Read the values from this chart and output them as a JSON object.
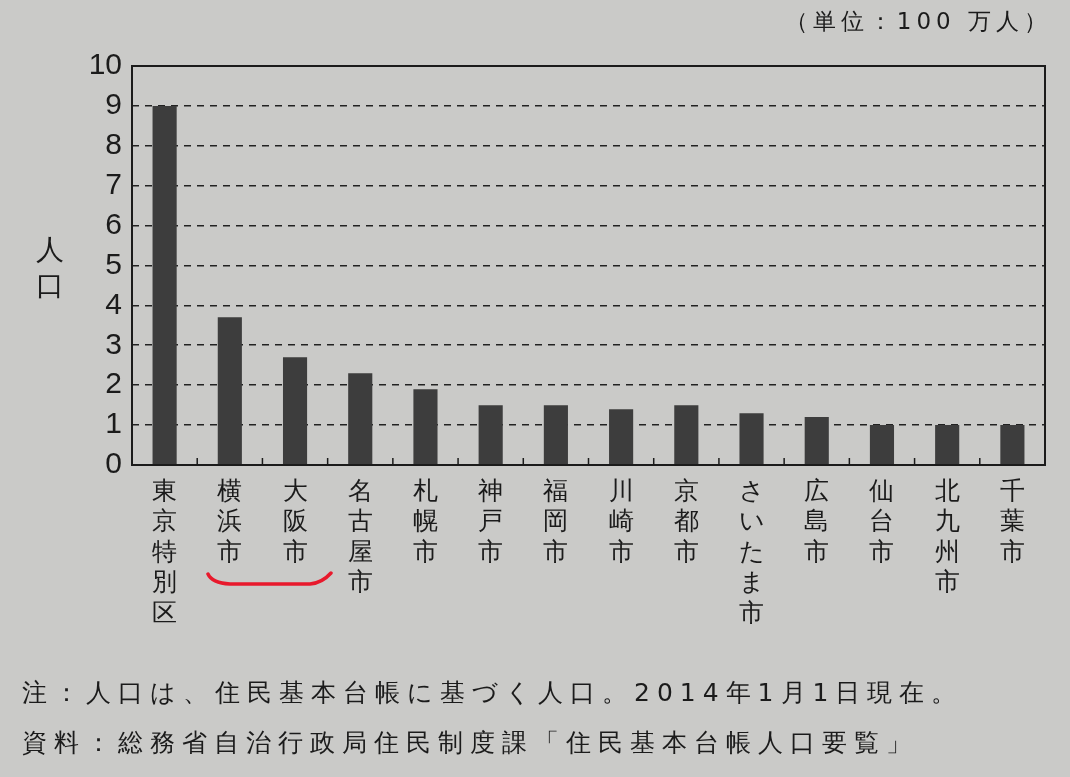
{
  "chart_data": {
    "type": "bar",
    "ylabel": "人口",
    "annotations": [
      "（単位：100 万人）",
      "注：人口は、住民基本台帳に基づく人口。2014年1月1日現在。",
      "資料：総務省自治行政局住民制度課「住民基本台帳人口要覧」"
    ],
    "categories": [
      "東京特別区",
      "横浜市",
      "大阪市",
      "名古屋市",
      "札幌市",
      "神戸市",
      "福岡市",
      "川崎市",
      "京都市",
      "さいたま市",
      "広島市",
      "仙台市",
      "北九州市",
      "千葉市"
    ],
    "values": [
      9.0,
      3.7,
      2.7,
      2.3,
      1.9,
      1.5,
      1.5,
      1.4,
      1.5,
      1.3,
      1.2,
      1.0,
      1.0,
      1.0
    ],
    "color": "#3d3d3d",
    "ylim": [
      0,
      10
    ],
    "yticks": [
      0,
      1,
      2,
      3,
      4,
      5,
      6,
      7,
      8,
      9,
      10
    ],
    "grid": "y"
  }
}
